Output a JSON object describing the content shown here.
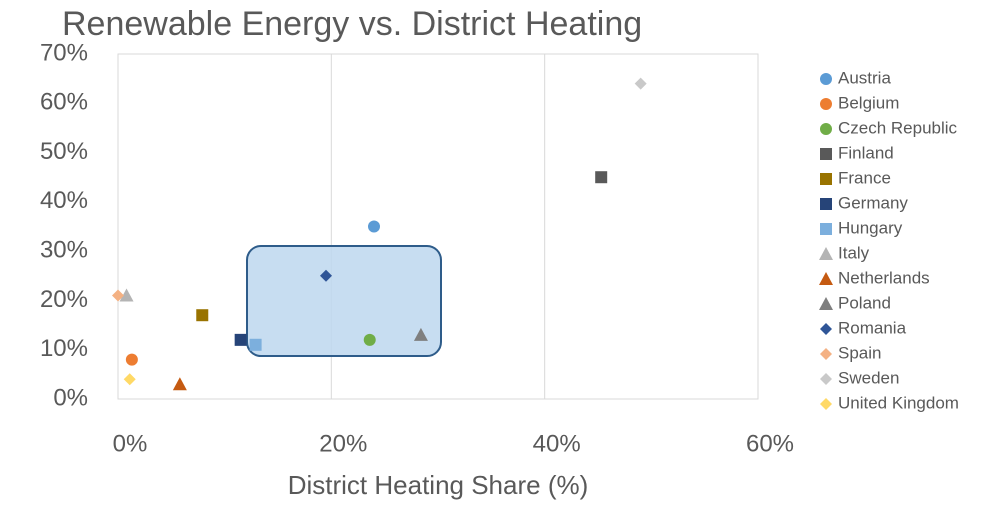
{
  "chart_data": {
    "type": "scatter",
    "title": "Renewable Energy vs. District Heating",
    "x_label": "District Heating Share (%)",
    "xlim": [
      0,
      60
    ],
    "xticks": [
      {
        "value": 0,
        "label": "0%"
      },
      {
        "value": 20,
        "label": "20%"
      },
      {
        "value": 40,
        "label": "40%"
      },
      {
        "value": 60,
        "label": "60%"
      }
    ],
    "ylim": [
      0,
      70
    ],
    "yticks": [
      {
        "value": 0,
        "label": "0%"
      },
      {
        "value": 10,
        "label": "10%"
      },
      {
        "value": 20,
        "label": "20%"
      },
      {
        "value": 30,
        "label": "30%"
      },
      {
        "value": 40,
        "label": "40%"
      },
      {
        "value": 50,
        "label": "50%"
      },
      {
        "value": 60,
        "label": "60%"
      },
      {
        "value": 70,
        "label": "70%"
      }
    ],
    "grid": true,
    "legend": "right",
    "series": [
      {
        "name": "Austria",
        "color": "#5b9bd5",
        "marker": "circle",
        "x": [
          24
        ],
        "values": [
          35
        ]
      },
      {
        "name": "Belgium",
        "color": "#ed7d31",
        "marker": "circle",
        "x": [
          1.3
        ],
        "values": [
          8
        ]
      },
      {
        "name": "Czech Republic",
        "color": "#70ad47",
        "marker": "circle",
        "x": [
          23.6
        ],
        "values": [
          12
        ]
      },
      {
        "name": "Finland",
        "color": "#595959",
        "marker": "square",
        "x": [
          45.3
        ],
        "values": [
          45
        ]
      },
      {
        "name": "France",
        "color": "#997300",
        "marker": "square",
        "x": [
          7.9
        ],
        "values": [
          17
        ]
      },
      {
        "name": "Germany",
        "color": "#264478",
        "marker": "square",
        "x": [
          11.5
        ],
        "values": [
          12
        ]
      },
      {
        "name": "Hungary",
        "color": "#7cafdd",
        "marker": "square",
        "x": [
          12.9
        ],
        "values": [
          11
        ]
      },
      {
        "name": "Italy",
        "color": "#b4b4b4",
        "marker": "triangle",
        "x": [
          0.8
        ],
        "values": [
          21
        ]
      },
      {
        "name": "Netherlands",
        "color": "#c55a11",
        "marker": "triangle",
        "x": [
          5.8
        ],
        "values": [
          3
        ]
      },
      {
        "name": "Poland",
        "color": "#7f7f7f",
        "marker": "triangle",
        "x": [
          28.4
        ],
        "values": [
          13
        ]
      },
      {
        "name": "Romania",
        "color": "#2f5597",
        "marker": "diamond",
        "x": [
          19.5
        ],
        "values": [
          25
        ]
      },
      {
        "name": "Spain",
        "color": "#f4b183",
        "marker": "diamond",
        "x": [
          0
        ],
        "values": [
          21
        ]
      },
      {
        "name": "Sweden",
        "color": "#c9c9c9",
        "marker": "diamond",
        "x": [
          49
        ],
        "values": [
          64
        ]
      },
      {
        "name": "United Kingdom",
        "color": "#ffd966",
        "marker": "diamond",
        "x": [
          1.1
        ],
        "values": [
          4
        ]
      }
    ]
  }
}
